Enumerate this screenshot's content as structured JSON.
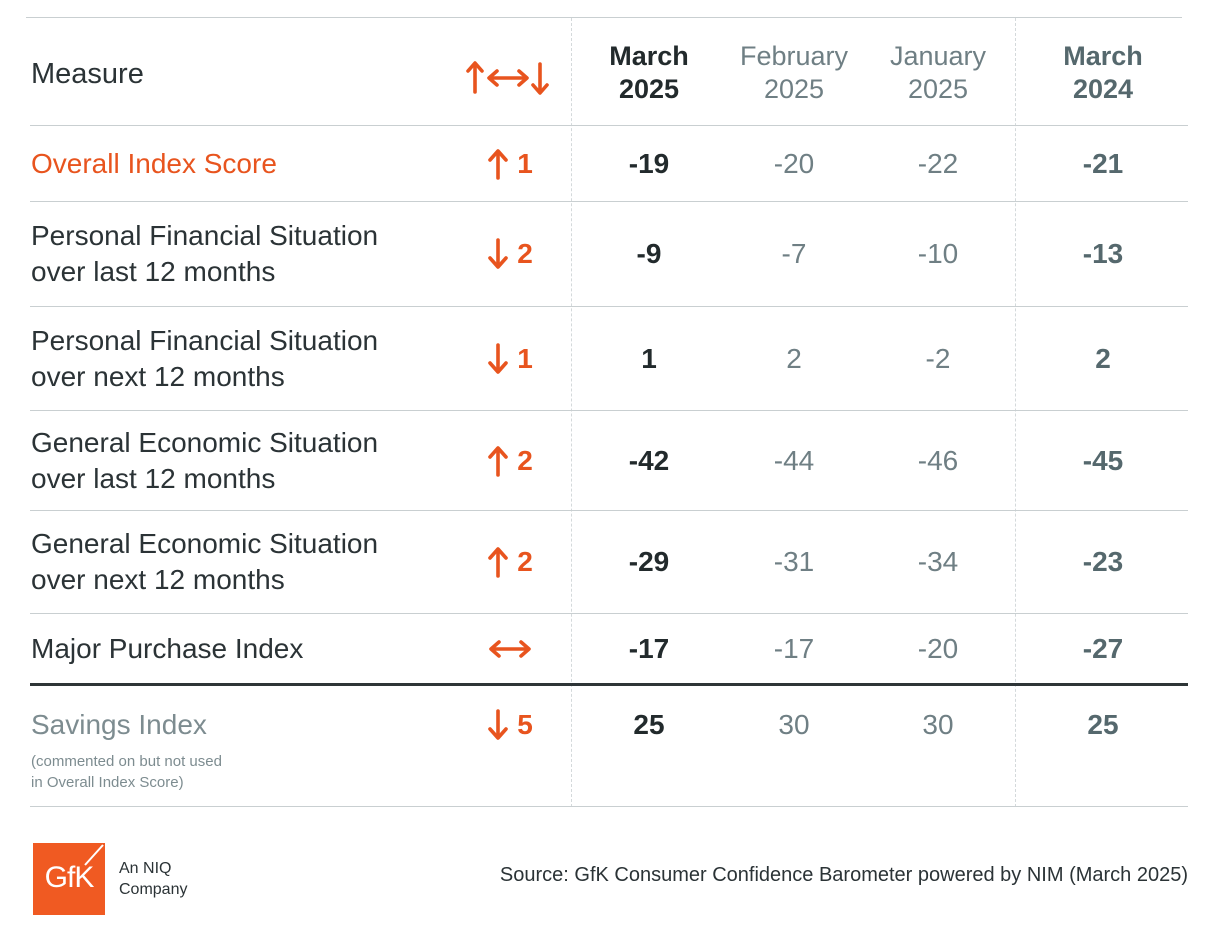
{
  "header": {
    "measure": "Measure",
    "change_icon": "up-sideways-down-arrows-icon",
    "columns": [
      {
        "line1": "March",
        "line2": "2025"
      },
      {
        "line1": "February",
        "line2": "2025"
      },
      {
        "line1": "January",
        "line2": "2025"
      },
      {
        "line1": "March",
        "line2": "2024"
      }
    ]
  },
  "rows": [
    {
      "measure_line1": "Overall Index Score",
      "measure_line2": "",
      "direction": "up",
      "change": "1",
      "values": [
        "-19",
        "-20",
        "-22",
        "-21"
      ]
    },
    {
      "measure_line1": "Personal Financial Situation",
      "measure_line2": "over last 12 months",
      "direction": "down",
      "change": "2",
      "values": [
        "-9",
        "-7",
        "-10",
        "-13"
      ]
    },
    {
      "measure_line1": "Personal Financial Situation",
      "measure_line2": "over next 12 months",
      "direction": "down",
      "change": "1",
      "values": [
        "1",
        "2",
        "-2",
        "2"
      ]
    },
    {
      "measure_line1": "General Economic Situation",
      "measure_line2": "over last 12 months",
      "direction": "up",
      "change": "2",
      "values": [
        "-42",
        "-44",
        "-46",
        "-45"
      ]
    },
    {
      "measure_line1": "General Economic Situation",
      "measure_line2": "over next 12 months",
      "direction": "up",
      "change": "2",
      "values": [
        "-29",
        "-31",
        "-34",
        "-23"
      ]
    },
    {
      "measure_line1": "Major Purchase Index",
      "measure_line2": "",
      "direction": "unchanged",
      "change": "",
      "values": [
        "-17",
        "-17",
        "-20",
        "-27"
      ]
    },
    {
      "measure_line1": "Savings Index",
      "measure_line2": "",
      "direction": "down",
      "change": "5",
      "values": [
        "25",
        "30",
        "30",
        "25"
      ]
    }
  ],
  "savings_note": {
    "line1": "(commented on but not used",
    "line2": "in Overall Index Score)"
  },
  "footer": {
    "logo_text": "GfK",
    "tagline_line1": "An NIQ",
    "tagline_line2": "Company",
    "source": "Source: GfK Consumer Confidence Barometer powered by NIM (March 2025)"
  },
  "colors": {
    "accent": "#e8541e",
    "logo": "#f05a22",
    "text_dark": "#2b3336",
    "text_muted": "#6f7f84",
    "rule": "#c9cfd1"
  }
}
